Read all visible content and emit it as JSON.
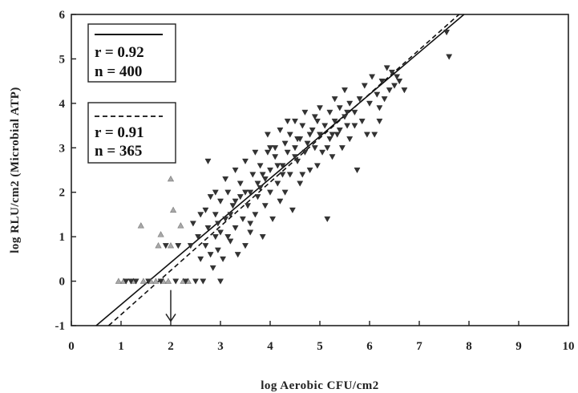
{
  "chart_data": {
    "type": "scatter",
    "xlabel": "log Aerobic CFU/cm2",
    "ylabel": "log RLU/cm2 (Microbial ATP)",
    "xlim": [
      0,
      10
    ],
    "ylim": [
      -1,
      6
    ],
    "x_ticks": [
      "0",
      "1",
      "2",
      "3",
      "4",
      "5",
      "6",
      "7",
      "8",
      "9",
      "10"
    ],
    "y_ticks": [
      "-1",
      "0",
      "1",
      "2",
      "3",
      "4",
      "5",
      "6"
    ],
    "grid": false,
    "legend": [
      {
        "style": "solid",
        "r_text": "r = 0.92",
        "n_text": "n = 400"
      },
      {
        "style": "dashed",
        "r_text": "r = 0.91",
        "n_text": "n = 365"
      }
    ],
    "fit_lines": [
      {
        "style": "solid",
        "x": [
          0.5,
          7.9
        ],
        "y": [
          -1.0,
          6.0
        ]
      },
      {
        "style": "dashed",
        "x": [
          0.75,
          7.8
        ],
        "y": [
          -1.0,
          6.0
        ]
      }
    ],
    "annotation": {
      "type": "arrow",
      "x": 2.0,
      "y_from": -0.2,
      "y_to": -0.9
    },
    "series": [
      {
        "marker": "triangle-up",
        "points": [
          [
            0.95,
            0.0
          ],
          [
            1.05,
            0.0
          ],
          [
            1.25,
            0.0
          ],
          [
            1.4,
            1.25
          ],
          [
            1.45,
            0.0
          ],
          [
            1.6,
            0.0
          ],
          [
            1.7,
            0.0
          ],
          [
            1.75,
            0.8
          ],
          [
            1.8,
            1.05
          ],
          [
            1.85,
            0.0
          ],
          [
            1.95,
            0.0
          ],
          [
            2.0,
            0.8
          ],
          [
            2.0,
            2.3
          ],
          [
            2.05,
            1.6
          ],
          [
            2.2,
            1.25
          ],
          [
            2.25,
            0.0
          ],
          [
            2.35,
            0.0
          ]
        ]
      },
      {
        "marker": "triangle-down",
        "points": [
          [
            1.1,
            0.0
          ],
          [
            1.2,
            0.0
          ],
          [
            1.3,
            0.0
          ],
          [
            1.55,
            0.0
          ],
          [
            1.8,
            0.0
          ],
          [
            1.9,
            0.8
          ],
          [
            2.1,
            0.0
          ],
          [
            2.15,
            0.8
          ],
          [
            2.3,
            0.0
          ],
          [
            2.4,
            0.8
          ],
          [
            2.45,
            1.3
          ],
          [
            2.5,
            0.0
          ],
          [
            2.55,
            1.0
          ],
          [
            2.6,
            1.5
          ],
          [
            2.6,
            0.5
          ],
          [
            2.65,
            0.0
          ],
          [
            2.7,
            0.8
          ],
          [
            2.75,
            2.7
          ],
          [
            2.75,
            1.2
          ],
          [
            2.8,
            0.6
          ],
          [
            2.8,
            1.9
          ],
          [
            2.85,
            0.3
          ],
          [
            2.9,
            1.0
          ],
          [
            2.9,
            1.5
          ],
          [
            2.95,
            0.7
          ],
          [
            2.95,
            1.3
          ],
          [
            3.0,
            0.0
          ],
          [
            3.0,
            1.8
          ],
          [
            3.0,
            1.1
          ],
          [
            3.05,
            0.5
          ],
          [
            3.1,
            1.4
          ],
          [
            3.15,
            2.0
          ],
          [
            3.1,
            2.3
          ],
          [
            3.2,
            0.9
          ],
          [
            3.25,
            1.7
          ],
          [
            3.3,
            2.5
          ],
          [
            3.3,
            1.2
          ],
          [
            3.35,
            0.6
          ],
          [
            3.4,
            1.9
          ],
          [
            3.4,
            2.2
          ],
          [
            3.45,
            1.4
          ],
          [
            3.5,
            0.8
          ],
          [
            3.5,
            2.7
          ],
          [
            3.55,
            1.7
          ],
          [
            3.6,
            2.0
          ],
          [
            3.6,
            1.1
          ],
          [
            3.65,
            2.4
          ],
          [
            3.7,
            2.9
          ],
          [
            3.7,
            1.5
          ],
          [
            3.75,
            1.9
          ],
          [
            3.8,
            2.1
          ],
          [
            3.8,
            2.6
          ],
          [
            3.85,
            1.0
          ],
          [
            3.9,
            2.3
          ],
          [
            3.9,
            1.7
          ],
          [
            3.95,
            3.3
          ],
          [
            3.95,
            2.9
          ],
          [
            4.0,
            2.0
          ],
          [
            4.0,
            2.5
          ],
          [
            4.05,
            1.4
          ],
          [
            4.1,
            2.8
          ],
          [
            4.1,
            3.0
          ],
          [
            4.15,
            2.2
          ],
          [
            4.2,
            1.8
          ],
          [
            4.2,
            3.4
          ],
          [
            4.25,
            2.6
          ],
          [
            4.3,
            3.1
          ],
          [
            4.3,
            2.0
          ],
          [
            4.35,
            2.9
          ],
          [
            4.4,
            3.3
          ],
          [
            4.4,
            2.4
          ],
          [
            4.45,
            1.6
          ],
          [
            4.5,
            3.0
          ],
          [
            4.5,
            3.6
          ],
          [
            4.55,
            2.7
          ],
          [
            4.6,
            3.2
          ],
          [
            4.6,
            2.2
          ],
          [
            4.65,
            3.5
          ],
          [
            4.7,
            2.9
          ],
          [
            4.7,
            3.8
          ],
          [
            4.75,
            3.1
          ],
          [
            4.8,
            2.5
          ],
          [
            4.85,
            3.4
          ],
          [
            4.9,
            3.0
          ],
          [
            4.9,
            3.7
          ],
          [
            4.95,
            2.6
          ],
          [
            5.0,
            3.3
          ],
          [
            5.0,
            3.9
          ],
          [
            5.05,
            2.9
          ],
          [
            5.1,
            3.5
          ],
          [
            5.15,
            1.4
          ],
          [
            5.2,
            3.2
          ],
          [
            5.2,
            3.8
          ],
          [
            5.25,
            2.8
          ],
          [
            5.3,
            3.6
          ],
          [
            5.3,
            4.1
          ],
          [
            5.35,
            3.3
          ],
          [
            5.4,
            3.9
          ],
          [
            5.45,
            3.0
          ],
          [
            5.5,
            3.7
          ],
          [
            5.5,
            4.3
          ],
          [
            5.55,
            3.5
          ],
          [
            5.6,
            4.0
          ],
          [
            5.6,
            3.2
          ],
          [
            5.7,
            3.8
          ],
          [
            5.75,
            2.5
          ],
          [
            5.8,
            4.1
          ],
          [
            5.85,
            3.6
          ],
          [
            5.9,
            4.4
          ],
          [
            5.95,
            3.3
          ],
          [
            6.0,
            4.0
          ],
          [
            6.05,
            4.6
          ],
          [
            6.1,
            3.3
          ],
          [
            6.15,
            4.2
          ],
          [
            6.2,
            3.9
          ],
          [
            6.25,
            4.5
          ],
          [
            6.3,
            4.1
          ],
          [
            6.35,
            4.8
          ],
          [
            6.4,
            4.3
          ],
          [
            6.45,
            4.7
          ],
          [
            6.5,
            4.4
          ],
          [
            6.55,
            4.6
          ],
          [
            6.6,
            4.5
          ],
          [
            6.7,
            4.3
          ],
          [
            7.55,
            5.6
          ],
          [
            7.6,
            5.05
          ],
          [
            2.9,
            2.0
          ],
          [
            3.2,
            1.5
          ],
          [
            3.6,
            1.3
          ],
          [
            3.85,
            2.4
          ],
          [
            4.25,
            2.4
          ],
          [
            4.5,
            2.8
          ],
          [
            4.8,
            3.3
          ],
          [
            5.15,
            3.0
          ],
          [
            5.4,
            3.4
          ],
          [
            5.7,
            3.5
          ],
          [
            4.0,
            3.0
          ],
          [
            4.35,
            3.6
          ],
          [
            4.65,
            2.4
          ],
          [
            3.5,
            2.0
          ],
          [
            3.15,
            1.0
          ],
          [
            2.7,
            1.6
          ],
          [
            3.3,
            1.8
          ],
          [
            3.75,
            2.2
          ],
          [
            4.15,
            2.6
          ],
          [
            4.55,
            3.2
          ],
          [
            4.95,
            3.6
          ],
          [
            5.25,
            3.3
          ],
          [
            5.55,
            3.8
          ],
          [
            6.2,
            3.6
          ]
        ]
      }
    ]
  }
}
